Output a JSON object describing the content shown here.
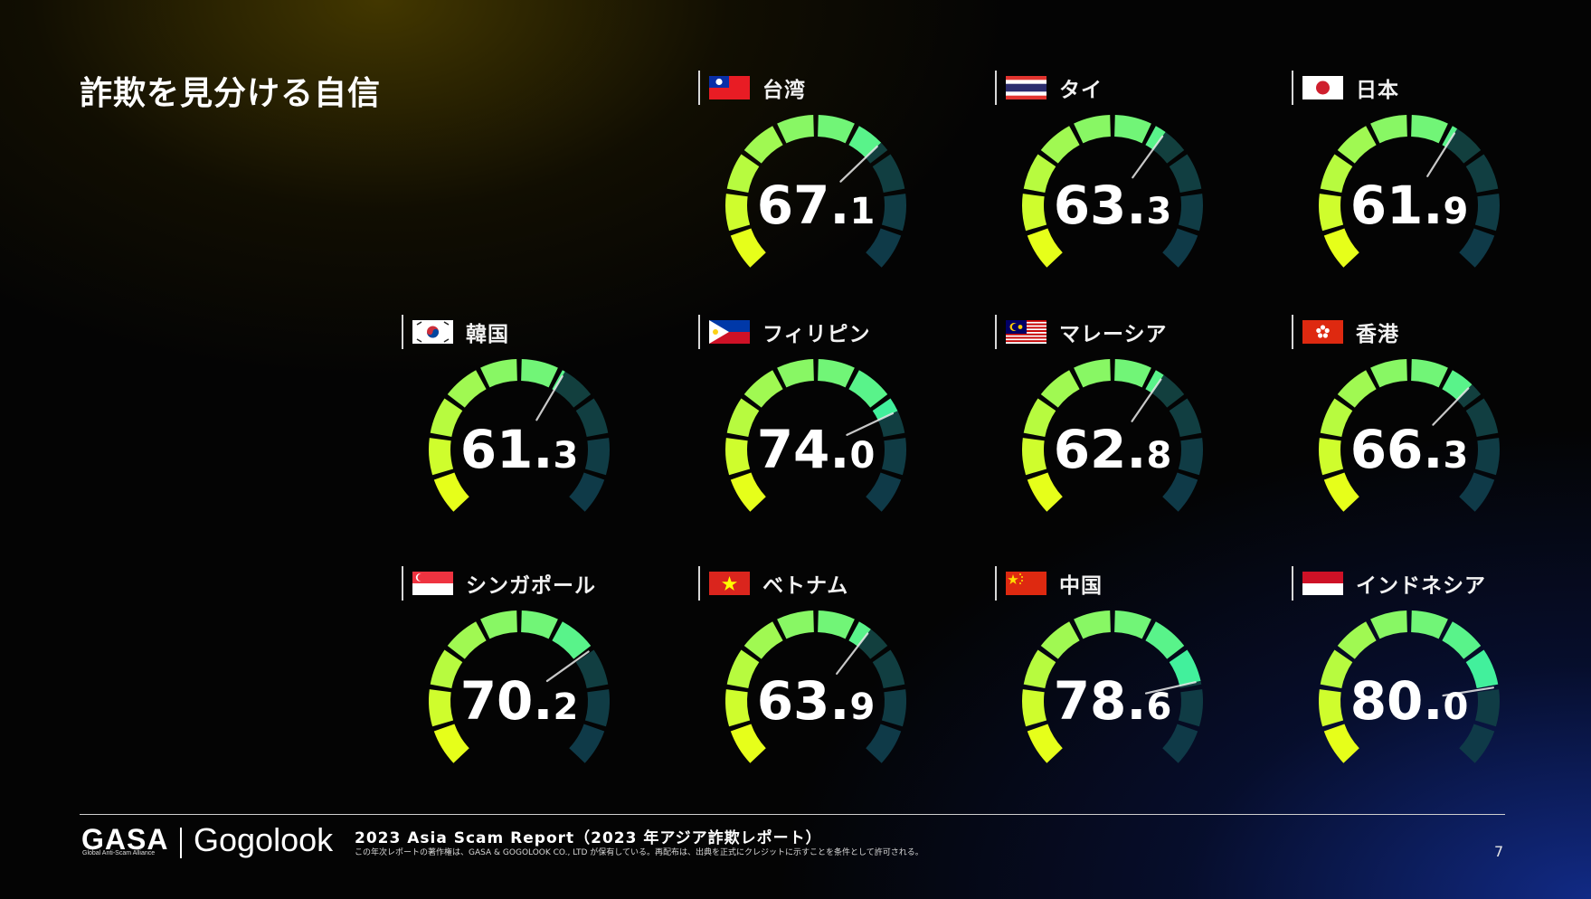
{
  "page": {
    "title": "詐欺を見分ける自信",
    "page_number": "7"
  },
  "footer": {
    "brand_gasa": "GASA",
    "brand_gasa_sub": "Global Anti-Scam Alliance",
    "brand_gogolook": "Gogolook",
    "report_title": "2023 Asia Scam Report（2023 年アジア詐欺レポート）",
    "copyright": "この年次レポートの著作権は、GASA & GOGOLOOK CO., LTD が保有している。再配布は、出典を正式にクレジットに示すことを条件として許可される。"
  },
  "chart_data": {
    "type": "gauge",
    "range": [
      0,
      100
    ],
    "items": [
      {
        "country": "台湾",
        "value": 67.1,
        "int": "67.",
        "dec": "1",
        "flag": "taiwan"
      },
      {
        "country": "タイ",
        "value": 63.3,
        "int": "63.",
        "dec": "3",
        "flag": "thailand"
      },
      {
        "country": "日本",
        "value": 61.9,
        "int": "61.",
        "dec": "9",
        "flag": "japan"
      },
      {
        "country": "韓国",
        "value": 61.3,
        "int": "61.",
        "dec": "3",
        "flag": "korea"
      },
      {
        "country": "フィリピン",
        "value": 74.0,
        "int": "74.",
        "dec": "0",
        "flag": "philippines"
      },
      {
        "country": "マレーシア",
        "value": 62.8,
        "int": "62.",
        "dec": "8",
        "flag": "malaysia"
      },
      {
        "country": "香港",
        "value": 66.3,
        "int": "66.",
        "dec": "3",
        "flag": "hongkong"
      },
      {
        "country": "シンガポール",
        "value": 70.2,
        "int": "70.",
        "dec": "2",
        "flag": "singapore"
      },
      {
        "country": "ベトナム",
        "value": 63.9,
        "int": "63.",
        "dec": "9",
        "flag": "vietnam"
      },
      {
        "country": "中国",
        "value": 78.6,
        "int": "78.",
        "dec": "6",
        "flag": "china"
      },
      {
        "country": "インドネシア",
        "value": 80.0,
        "int": "80.",
        "dec": "0",
        "flag": "indonesia"
      }
    ],
    "colors": {
      "segment_start": "#e6ff1a",
      "segment_end": "#3df0a0",
      "segment_inactive": "#184a2a"
    }
  }
}
